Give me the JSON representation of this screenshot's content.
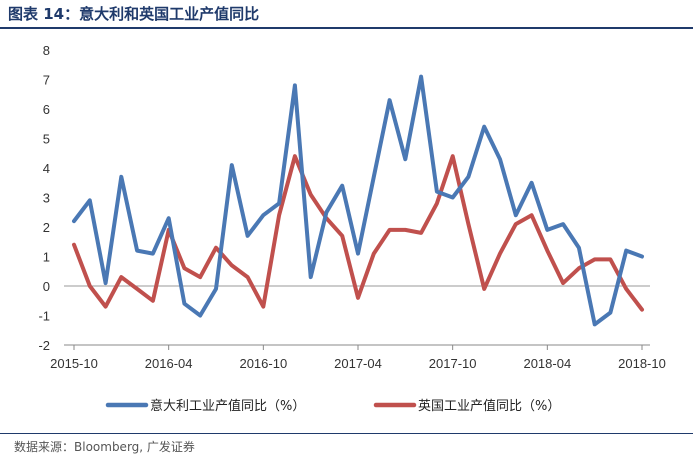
{
  "title": "图表 14：意大利和英国工业产值同比",
  "source": "数据来源：Bloomberg, 广发证券",
  "colors": {
    "italy": "#4a78b4",
    "uk": "#c0504d",
    "axis": "#888888",
    "title": "#1f3a6b"
  },
  "chart_data": {
    "type": "line",
    "title": "意大利和英国工业产值同比",
    "xlabel": "",
    "ylabel": "",
    "ylim": [
      -2,
      8
    ],
    "yticks": [
      "-2",
      "-1",
      "0",
      "1",
      "2",
      "3",
      "4",
      "5",
      "6",
      "7",
      "8"
    ],
    "xtick_labels": [
      "2015-10",
      "2016-04",
      "2016-10",
      "2017-04",
      "2017-10",
      "2018-04",
      "2018-10"
    ],
    "xtick_index": [
      0,
      6,
      12,
      18,
      24,
      30,
      36
    ],
    "categories": [
      "2015-10",
      "2015-11",
      "2015-12",
      "2016-01",
      "2016-02",
      "2016-03",
      "2016-04",
      "2016-05",
      "2016-06",
      "2016-07",
      "2016-08",
      "2016-09",
      "2016-10",
      "2016-11",
      "2016-12",
      "2017-01",
      "2017-02",
      "2017-03",
      "2017-04",
      "2017-05",
      "2017-06",
      "2017-07",
      "2017-08",
      "2017-09",
      "2017-10",
      "2017-11",
      "2017-12",
      "2018-01",
      "2018-02",
      "2018-03",
      "2018-04",
      "2018-05",
      "2018-06",
      "2018-07",
      "2018-08",
      "2018-09",
      "2018-10"
    ],
    "series": [
      {
        "name": "意大利工业产值同比（%）",
        "color": "#4a78b4",
        "values": [
          2.2,
          2.9,
          0.1,
          3.7,
          1.2,
          1.1,
          2.3,
          -0.6,
          -1.0,
          -0.1,
          4.1,
          1.7,
          2.4,
          2.8,
          6.8,
          0.3,
          2.5,
          3.4,
          1.1,
          3.7,
          6.3,
          4.3,
          7.1,
          3.2,
          3.0,
          3.7,
          5.4,
          4.3,
          2.4,
          3.5,
          1.9,
          2.1,
          1.3,
          -1.3,
          -0.9,
          1.2,
          1.0
        ]
      },
      {
        "name": "英国工业产值同比（%）",
        "color": "#c0504d",
        "values": [
          1.4,
          0.0,
          -0.7,
          0.3,
          -0.1,
          -0.5,
          1.9,
          0.6,
          0.3,
          1.3,
          0.7,
          0.3,
          -0.7,
          2.4,
          4.4,
          3.1,
          2.3,
          1.7,
          -0.4,
          1.1,
          1.9,
          1.9,
          1.8,
          2.8,
          4.4,
          2.1,
          -0.1,
          1.1,
          2.1,
          2.4,
          1.2,
          0.1,
          0.6,
          0.9,
          0.9,
          -0.1,
          -0.8
        ]
      }
    ],
    "legend": "bottom"
  }
}
